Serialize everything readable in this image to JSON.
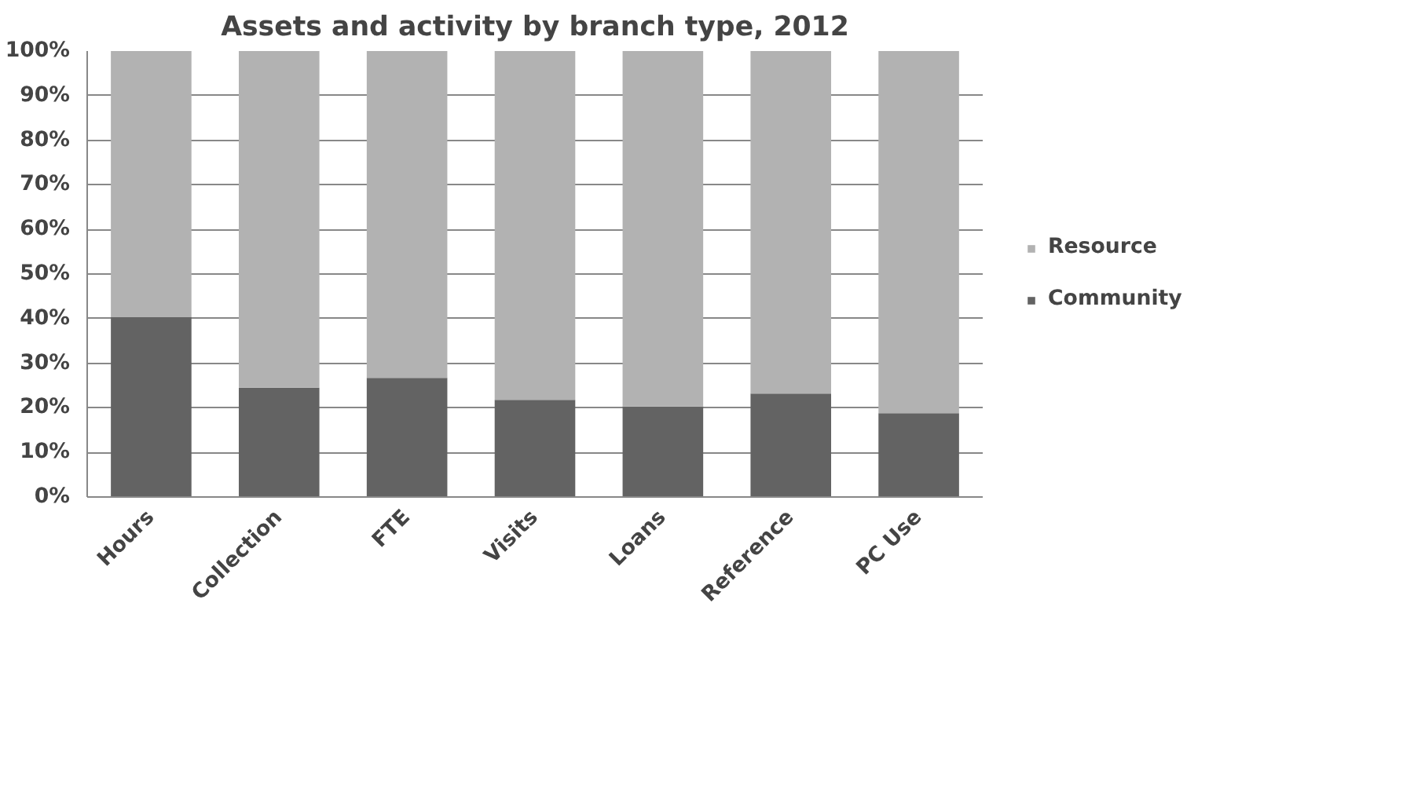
{
  "chart_data": {
    "type": "bar",
    "stacked": true,
    "title": "Assets and activity by branch type, 2012",
    "categories": [
      "Hours",
      "Collection",
      "FTE",
      "Visits",
      "Loans",
      "Reference",
      "PC Use"
    ],
    "series": [
      {
        "name": "Community",
        "color": "#636363",
        "values": [
          40.3,
          24.5,
          26.7,
          21.8,
          20.3,
          23.2,
          18.8
        ]
      },
      {
        "name": "Resource",
        "color": "#b2b2b2",
        "values": [
          59.7,
          75.5,
          73.3,
          78.2,
          79.7,
          76.8,
          81.2
        ]
      }
    ],
    "ylim": [
      0,
      100
    ],
    "yticks": [
      {
        "value": 0,
        "label": "0%"
      },
      {
        "value": 10,
        "label": "10%"
      },
      {
        "value": 20,
        "label": "20%"
      },
      {
        "value": 30,
        "label": "30%"
      },
      {
        "value": 40,
        "label": "40%"
      },
      {
        "value": 50,
        "label": "50%"
      },
      {
        "value": 60,
        "label": "60%"
      },
      {
        "value": 70,
        "label": "70%"
      },
      {
        "value": 80,
        "label": "80%"
      },
      {
        "value": 90,
        "label": "90%"
      },
      {
        "value": 100,
        "label": "100%"
      }
    ],
    "grid": "y",
    "legend": "right"
  }
}
